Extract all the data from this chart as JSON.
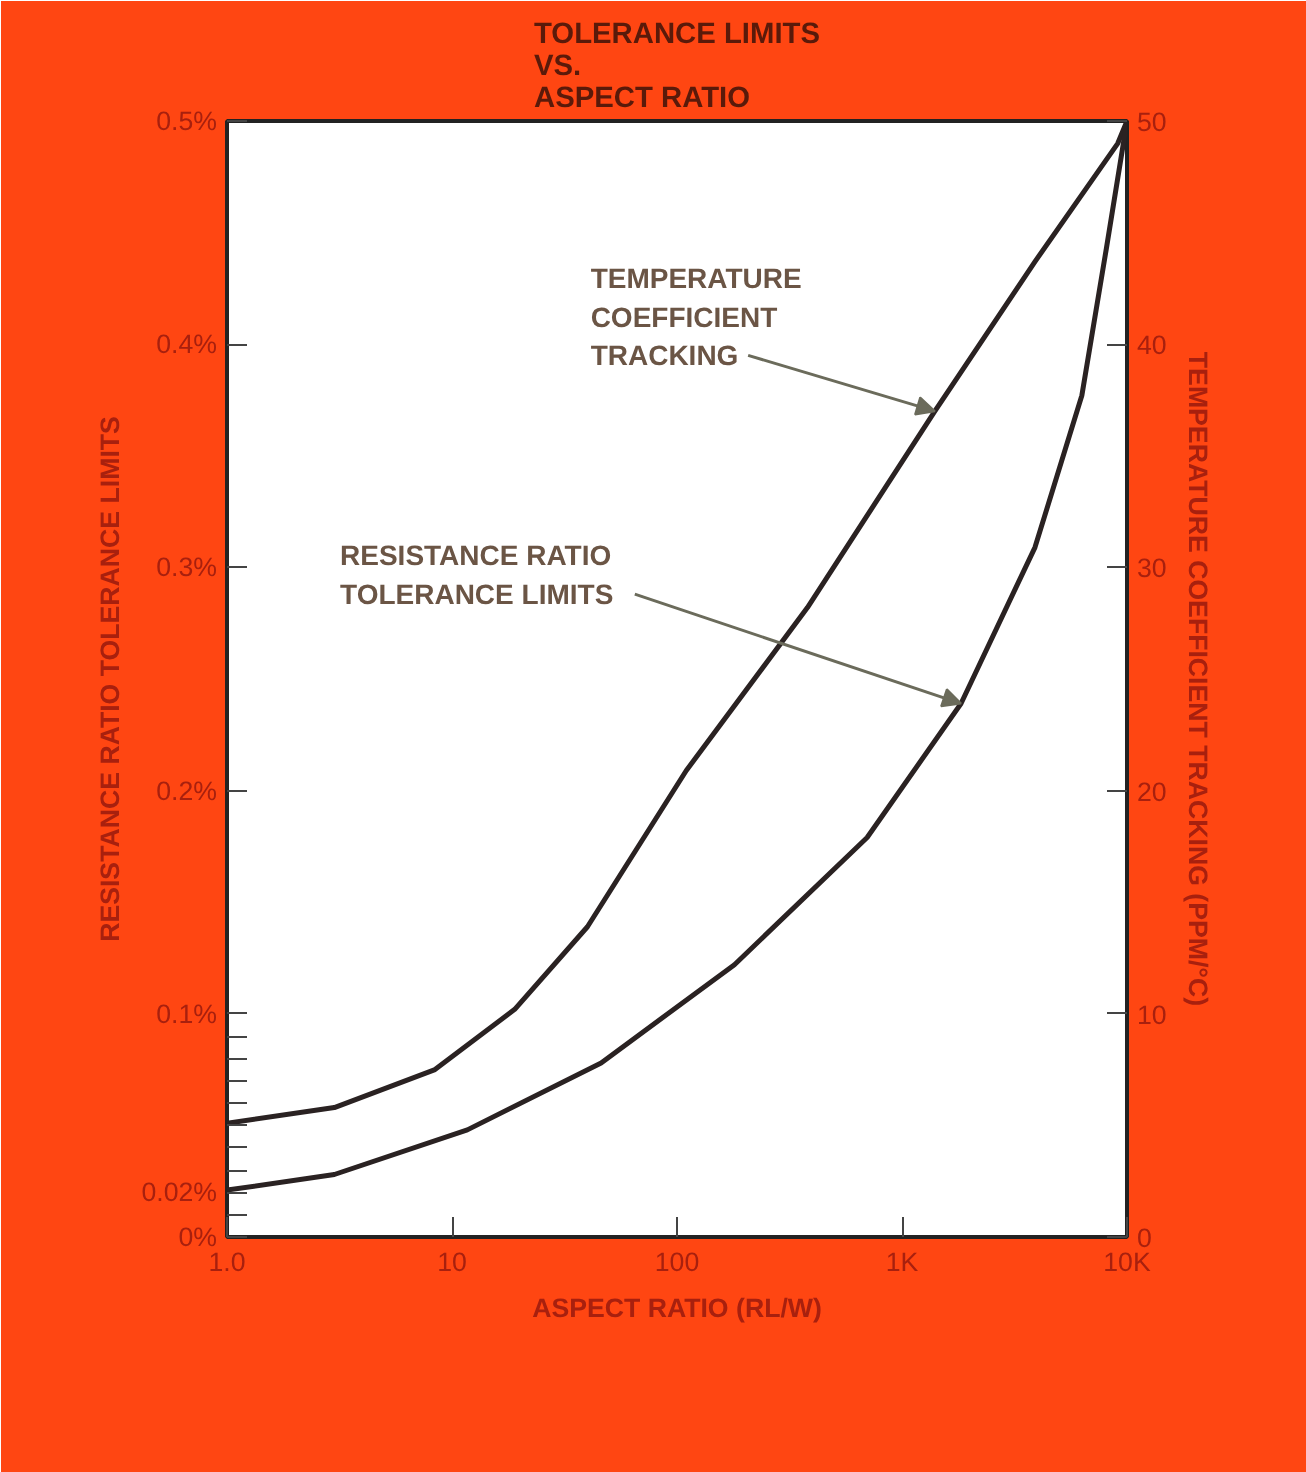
{
  "chart_data": {
    "type": "line",
    "title": "TOLERANCE LIMITS\nVS.\nASPECT RATIO",
    "xlabel": "ASPECT RATIO (RL/W)",
    "ylabel": "RESISTANCE RATIO TOLERANCE LIMITS",
    "y2label": "TEMPERATURE COEFFICIENT TRACKING (PPM/°C)",
    "log": "x",
    "grid": false,
    "marker": "none",
    "line_style": "solid",
    "xlim": [
      1,
      10000
    ],
    "xticks": [
      {
        "value": 1,
        "label": "1.0"
      },
      10,
      100,
      {
        "value": 1000,
        "label": "1K"
      },
      {
        "value": 10000,
        "label": "10K"
      }
    ],
    "ylim": [
      0,
      0.5
    ],
    "yticks": [
      {
        "value": 0,
        "label": "0%"
      },
      {
        "value": 0.01,
        "label": null
      },
      {
        "value": 0.02,
        "label": "0.02%"
      },
      {
        "value": 0.03,
        "label": null
      },
      {
        "value": 0.04,
        "label": null
      },
      {
        "value": 0.05,
        "label": null
      },
      {
        "value": 0.06,
        "label": null
      },
      {
        "value": 0.07,
        "label": null
      },
      {
        "value": 0.08,
        "label": null
      },
      {
        "value": 0.09,
        "label": null
      },
      {
        "value": 0.1,
        "label": "0.1%"
      },
      {
        "value": 0.2,
        "label": "0.2%"
      },
      {
        "value": 0.3,
        "label": "0.3%"
      },
      {
        "value": 0.4,
        "label": "0.4%"
      },
      {
        "value": 0.5,
        "label": "0.5%"
      }
    ],
    "y2lim": [
      0,
      50
    ],
    "y2ticks": [
      0,
      10,
      20,
      30,
      40,
      50
    ],
    "series": [
      {
        "color": "#2a2222",
        "axis": "y2",
        "x": [
          1,
          3,
          8.4,
          19,
          40,
          110,
          380,
          1400,
          3900,
          9100,
          10000
        ],
        "values": [
          5.1,
          5.8,
          7.5,
          10.2,
          13.9,
          20.9,
          28.2,
          37,
          43.7,
          49,
          50
        ]
      },
      {
        "color": "#2a2222",
        "x": [
          1,
          3,
          11.7,
          46,
          180,
          700,
          1830,
          3900,
          6300,
          8100,
          10000
        ],
        "values": [
          0.021,
          0.028,
          0.048,
          0.078,
          0.122,
          0.179,
          0.239,
          0.309,
          0.377,
          0.443,
          0.5
        ]
      }
    ],
    "annotations": [
      {
        "text": "TEMPERATURE\nCOEFFICIENT\nTRACKING",
        "x": 1400,
        "y": 0.37
      },
      {
        "text": "RESISTANCE RATIO\nTOLERANCE LIMITS",
        "x": 1830,
        "y": 0.239
      }
    ]
  }
}
